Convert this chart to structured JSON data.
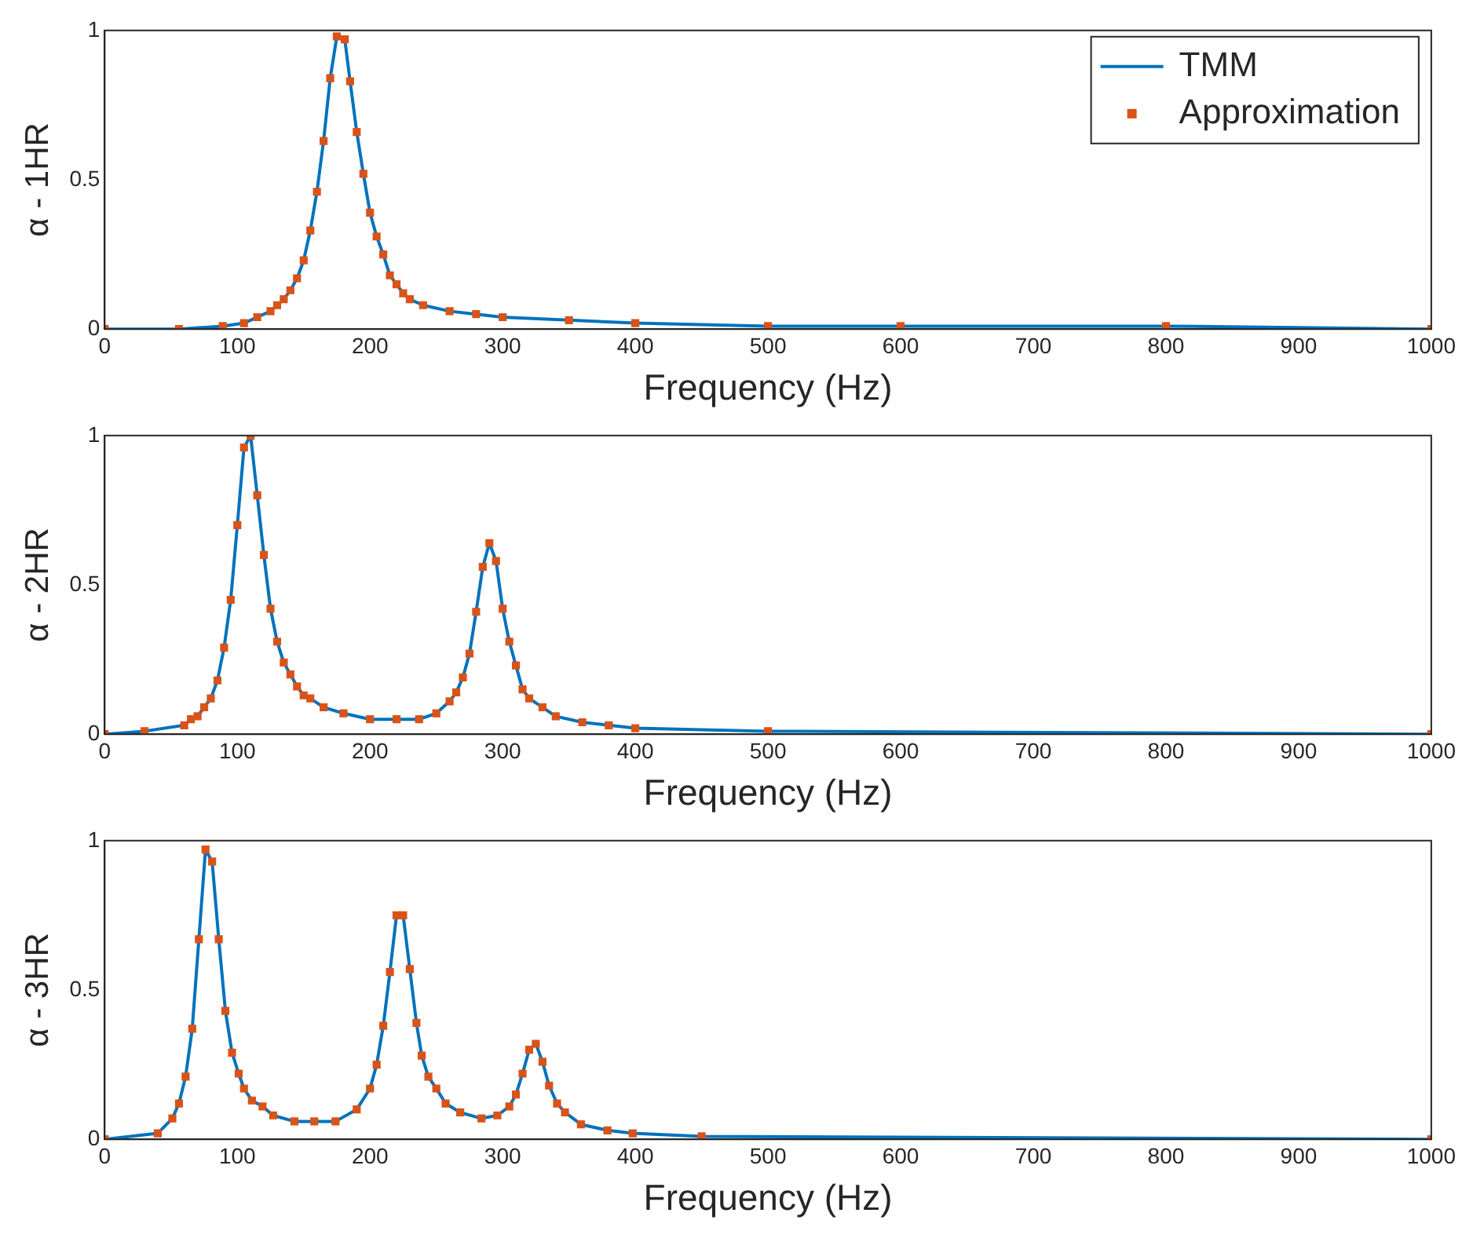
{
  "chart_data": [
    {
      "type": "line",
      "xlabel": "Frequency (Hz)",
      "ylabel": "α - 1HR",
      "xlim": [
        0,
        1000
      ],
      "xticks": [
        0,
        100,
        200,
        300,
        400,
        500,
        600,
        700,
        800,
        900,
        1000
      ],
      "ylim": [
        0,
        1
      ],
      "yticks": [
        0,
        0.5,
        1
      ],
      "grid": false,
      "legend": "top right",
      "x": [
        0,
        56,
        89,
        105,
        115,
        125,
        130,
        135,
        140,
        145,
        150,
        155,
        160,
        165,
        170,
        175,
        181,
        185,
        190,
        195,
        200,
        205,
        210,
        215,
        220,
        225,
        230,
        240,
        260,
        280,
        300,
        350,
        400,
        500,
        600,
        800,
        1000
      ],
      "series": [
        {
          "name": "TMM",
          "color": "#0072bd",
          "type": "line",
          "marker": "none",
          "values": [
            0,
            0,
            0.01,
            0.02,
            0.04,
            0.06,
            0.08,
            0.1,
            0.13,
            0.17,
            0.23,
            0.33,
            0.46,
            0.63,
            0.84,
            0.98,
            0.97,
            0.83,
            0.66,
            0.52,
            0.39,
            0.31,
            0.25,
            0.18,
            0.15,
            0.12,
            0.1,
            0.08,
            0.06,
            0.05,
            0.04,
            0.03,
            0.02,
            0.01,
            0.01,
            0.01,
            0
          ]
        },
        {
          "name": "Approximation",
          "color": "#d95319",
          "type": "scatter",
          "marker": "square",
          "values": [
            0,
            0,
            0.01,
            0.02,
            0.04,
            0.06,
            0.08,
            0.1,
            0.13,
            0.17,
            0.23,
            0.33,
            0.46,
            0.63,
            0.84,
            0.98,
            0.97,
            0.83,
            0.66,
            0.52,
            0.39,
            0.31,
            0.25,
            0.18,
            0.15,
            0.12,
            0.1,
            0.08,
            0.06,
            0.05,
            0.04,
            0.03,
            0.02,
            0.01,
            0.01,
            0.01,
            0
          ]
        }
      ]
    },
    {
      "type": "line",
      "xlabel": "Frequency (Hz)",
      "ylabel": "α - 2HR",
      "xlim": [
        0,
        1000
      ],
      "xticks": [
        0,
        100,
        200,
        300,
        400,
        500,
        600,
        700,
        800,
        900,
        1000
      ],
      "ylim": [
        0,
        1
      ],
      "yticks": [
        0,
        0.5,
        1
      ],
      "grid": false,
      "x": [
        0,
        30,
        60,
        65,
        70,
        75,
        80,
        85,
        90,
        95,
        100,
        105,
        110,
        115,
        120,
        125,
        130,
        135,
        140,
        145,
        150,
        155,
        165,
        180,
        200,
        220,
        237,
        250,
        260,
        265,
        270,
        275,
        280,
        285,
        290,
        295,
        300,
        305,
        310,
        315,
        320,
        330,
        340,
        360,
        380,
        400,
        500,
        1000
      ],
      "series": [
        {
          "color": "#0072bd",
          "type": "line",
          "marker": "none",
          "values": [
            0,
            0.01,
            0.03,
            0.05,
            0.06,
            0.09,
            0.12,
            0.18,
            0.29,
            0.45,
            0.7,
            0.96,
            1,
            0.8,
            0.6,
            0.42,
            0.31,
            0.24,
            0.2,
            0.16,
            0.13,
            0.12,
            0.09,
            0.07,
            0.05,
            0.05,
            0.05,
            0.07,
            0.11,
            0.14,
            0.19,
            0.27,
            0.41,
            0.56,
            0.64,
            0.58,
            0.42,
            0.31,
            0.23,
            0.15,
            0.12,
            0.09,
            0.06,
            0.04,
            0.03,
            0.02,
            0.01,
            0
          ]
        },
        {
          "color": "#d95319",
          "type": "scatter",
          "marker": "square",
          "values": [
            0,
            0.01,
            0.03,
            0.05,
            0.06,
            0.09,
            0.12,
            0.18,
            0.29,
            0.45,
            0.7,
            0.96,
            1,
            0.8,
            0.6,
            0.42,
            0.31,
            0.24,
            0.2,
            0.16,
            0.13,
            0.12,
            0.09,
            0.07,
            0.05,
            0.05,
            0.05,
            0.07,
            0.11,
            0.14,
            0.19,
            0.27,
            0.41,
            0.56,
            0.64,
            0.58,
            0.42,
            0.31,
            0.23,
            0.15,
            0.12,
            0.09,
            0.06,
            0.04,
            0.03,
            0.02,
            0.01,
            0
          ]
        }
      ]
    },
    {
      "type": "line",
      "xlabel": "Frequency (Hz)",
      "ylabel": "α - 3HR",
      "xlim": [
        0,
        1000
      ],
      "xticks": [
        0,
        100,
        200,
        300,
        400,
        500,
        600,
        700,
        800,
        900,
        1000
      ],
      "ylim": [
        0,
        1
      ],
      "yticks": [
        0,
        0.5,
        1
      ],
      "grid": false,
      "x": [
        0,
        40,
        51,
        56,
        61,
        66,
        71,
        76,
        81,
        86,
        91,
        96,
        101,
        105,
        111,
        119,
        127,
        143,
        158,
        174,
        190,
        200,
        205,
        210,
        215,
        220,
        225,
        230,
        235,
        239,
        244,
        250,
        257,
        268,
        284,
        296,
        305,
        310,
        315,
        320,
        325,
        330,
        335,
        341,
        347,
        359,
        379,
        398,
        450,
        1000
      ],
      "series": [
        {
          "color": "#0072bd",
          "type": "line",
          "marker": "none",
          "values": [
            0,
            0.02,
            0.07,
            0.12,
            0.21,
            0.37,
            0.67,
            0.97,
            0.93,
            0.67,
            0.43,
            0.29,
            0.22,
            0.17,
            0.13,
            0.11,
            0.08,
            0.06,
            0.06,
            0.06,
            0.1,
            0.17,
            0.25,
            0.38,
            0.56,
            0.75,
            0.75,
            0.57,
            0.39,
            0.28,
            0.21,
            0.17,
            0.12,
            0.09,
            0.07,
            0.08,
            0.11,
            0.15,
            0.22,
            0.3,
            0.32,
            0.26,
            0.18,
            0.12,
            0.09,
            0.05,
            0.03,
            0.02,
            0.01,
            0
          ]
        },
        {
          "color": "#d95319",
          "type": "scatter",
          "marker": "square",
          "values": [
            0,
            0.02,
            0.07,
            0.12,
            0.21,
            0.37,
            0.67,
            0.97,
            0.93,
            0.67,
            0.43,
            0.29,
            0.22,
            0.17,
            0.13,
            0.11,
            0.08,
            0.06,
            0.06,
            0.06,
            0.1,
            0.17,
            0.25,
            0.38,
            0.56,
            0.75,
            0.75,
            0.57,
            0.39,
            0.28,
            0.21,
            0.17,
            0.12,
            0.09,
            0.07,
            0.08,
            0.11,
            0.15,
            0.22,
            0.3,
            0.32,
            0.26,
            0.18,
            0.12,
            0.09,
            0.05,
            0.03,
            0.02,
            0.01,
            0
          ]
        }
      ]
    }
  ]
}
